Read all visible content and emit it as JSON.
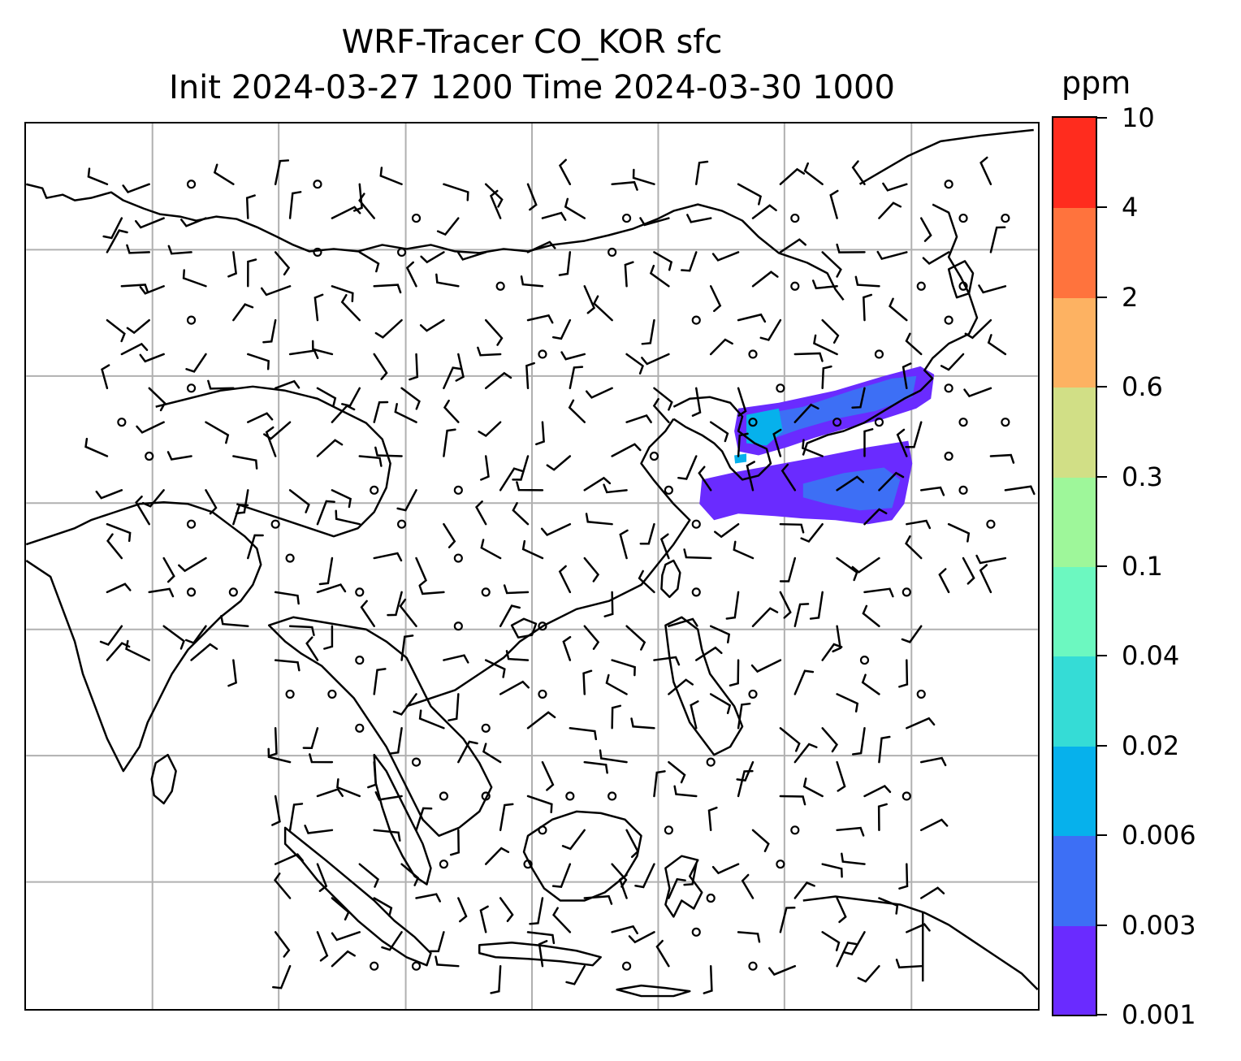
{
  "title": {
    "line1": "WRF-Tracer CO_KOR sfc",
    "line2": "Init 2024-03-27 1200 Time 2024-03-30 1000"
  },
  "colorbar": {
    "unit": "ppm",
    "levels": [
      {
        "label": "0.001",
        "color": "#6a2bff"
      },
      {
        "label": "0.003",
        "color": "#3d6ff5"
      },
      {
        "label": "0.006",
        "color": "#06b1ec"
      },
      {
        "label": "0.02",
        "color": "#35dcd6"
      },
      {
        "label": "0.04",
        "color": "#6cf8c0"
      },
      {
        "label": "0.1",
        "color": "#9ef79a"
      },
      {
        "label": "0.3",
        "color": "#d1df86"
      },
      {
        "label": "0.6",
        "color": "#fdb262"
      },
      {
        "label": "2",
        "color": "#ff733d"
      },
      {
        "label": "4",
        "color": "#ff2c1e"
      },
      {
        "label": "10",
        "color": null
      }
    ]
  },
  "map": {
    "gridlines": true,
    "plume_color_main": "#6a2bff",
    "plume_color_inner": "#3d6ff5",
    "plume_color_core": "#06b1ec",
    "coastline_color": "#000000",
    "grid_color": "#b0b0b0"
  }
}
